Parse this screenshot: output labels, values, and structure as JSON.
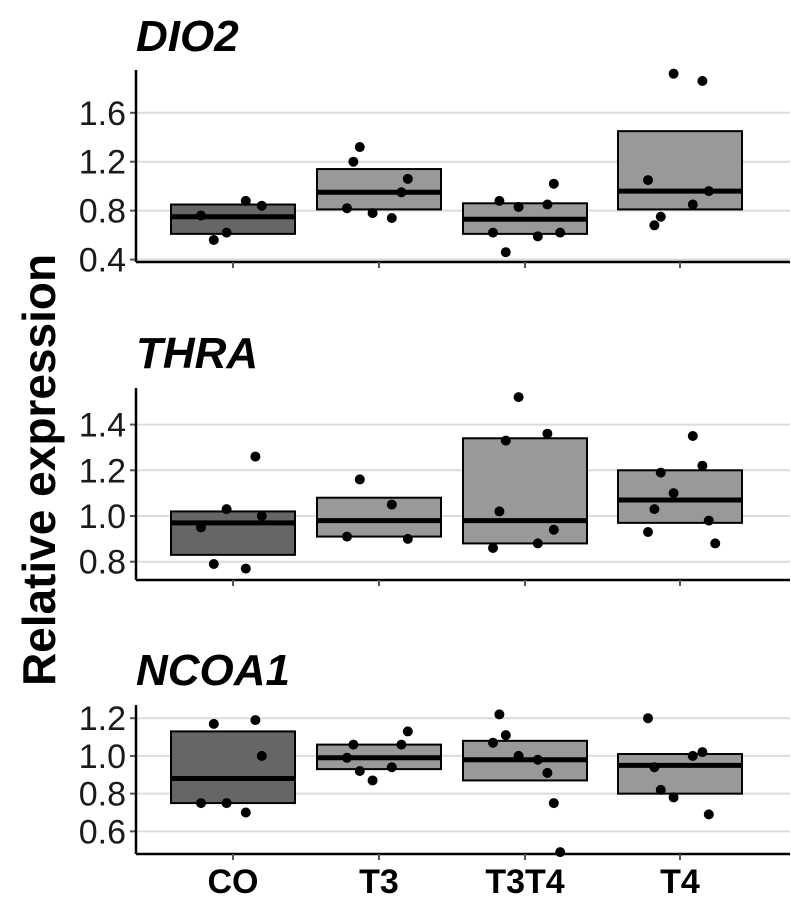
{
  "chart_data": {
    "type": "box",
    "ylabel": "Relative expression",
    "categories": [
      "CO",
      "T3",
      "T3T4",
      "T4"
    ],
    "colors": {
      "CO": "#666666",
      "T3": "#999999",
      "T3T4": "#999999",
      "T4": "#999999"
    },
    "panels": [
      {
        "title": "DIO2",
        "ylim": [
          0.38,
          1.95
        ],
        "yticks": [
          0.4,
          0.8,
          1.2,
          1.6
        ],
        "ytick_labels": [
          "0.4",
          "0.8",
          "1.2",
          "1.6"
        ],
        "boxes": [
          {
            "category": "CO",
            "lower": 0.61,
            "median": 0.75,
            "upper": 0.85,
            "points": [
              0.56,
              0.88,
              0.76,
              0.84,
              0.62
            ]
          },
          {
            "category": "T3",
            "lower": 0.81,
            "median": 0.95,
            "upper": 1.14,
            "points": [
              1.32,
              0.74,
              0.82,
              1.06,
              0.78,
              0.95,
              1.2
            ]
          },
          {
            "category": "T3T4",
            "lower": 0.61,
            "median": 0.73,
            "upper": 0.86,
            "points": [
              0.46,
              0.59,
              0.62,
              1.02,
              0.83,
              0.85,
              0.88,
              0.62
            ]
          },
          {
            "category": "T4",
            "lower": 0.81,
            "median": 0.96,
            "upper": 1.45,
            "points": [
              0.75,
              0.85,
              1.05,
              0.96,
              1.92,
              1.86,
              0.68
            ]
          }
        ]
      },
      {
        "title": "THRA",
        "ylim": [
          0.72,
          1.56
        ],
        "yticks": [
          0.8,
          1.0,
          1.2,
          1.4
        ],
        "ytick_labels": [
          "0.8",
          "1.0",
          "1.2",
          "1.4"
        ],
        "boxes": [
          {
            "category": "CO",
            "lower": 0.83,
            "median": 0.97,
            "upper": 1.02,
            "points": [
              0.79,
              0.77,
              0.95,
              1.0,
              1.03,
              1.26
            ]
          },
          {
            "category": "T3",
            "lower": 0.91,
            "median": 0.98,
            "upper": 1.08,
            "points": [
              1.16,
              1.05,
              0.91,
              0.9
            ]
          },
          {
            "category": "T3T4",
            "lower": 0.88,
            "median": 0.98,
            "upper": 1.34,
            "points": [
              1.33,
              0.88,
              0.86,
              0.94,
              1.52,
              1.36,
              1.02
            ]
          },
          {
            "category": "T4",
            "lower": 0.97,
            "median": 1.07,
            "upper": 1.2,
            "points": [
              1.19,
              1.35,
              0.93,
              0.98,
              1.1,
              1.22,
              1.03,
              0.88
            ]
          }
        ]
      },
      {
        "title": "NCOA1",
        "ylim": [
          0.48,
          1.27
        ],
        "yticks": [
          0.6,
          0.8,
          1.0,
          1.2
        ],
        "ytick_labels": [
          "0.6",
          "0.8",
          "1.0",
          "1.2"
        ],
        "boxes": [
          {
            "category": "CO",
            "lower": 0.75,
            "median": 0.88,
            "upper": 1.13,
            "points": [
              1.17,
              0.7,
              0.75,
              1.0,
              0.75,
              1.19
            ]
          },
          {
            "category": "T3",
            "lower": 0.93,
            "median": 0.99,
            "upper": 1.06,
            "points": [
              0.92,
              0.94,
              0.99,
              1.13,
              0.87,
              1.06,
              1.06
            ]
          },
          {
            "category": "T3T4",
            "lower": 0.87,
            "median": 0.98,
            "upper": 1.08,
            "points": [
              1.11,
              0.98,
              1.07,
              0.75,
              1.0,
              0.91,
              1.22,
              0.49
            ]
          },
          {
            "category": "T4",
            "lower": 0.8,
            "median": 0.95,
            "upper": 1.01,
            "points": [
              0.82,
              1.0,
              1.2,
              0.69,
              0.78,
              1.02,
              0.94
            ]
          }
        ]
      }
    ]
  }
}
